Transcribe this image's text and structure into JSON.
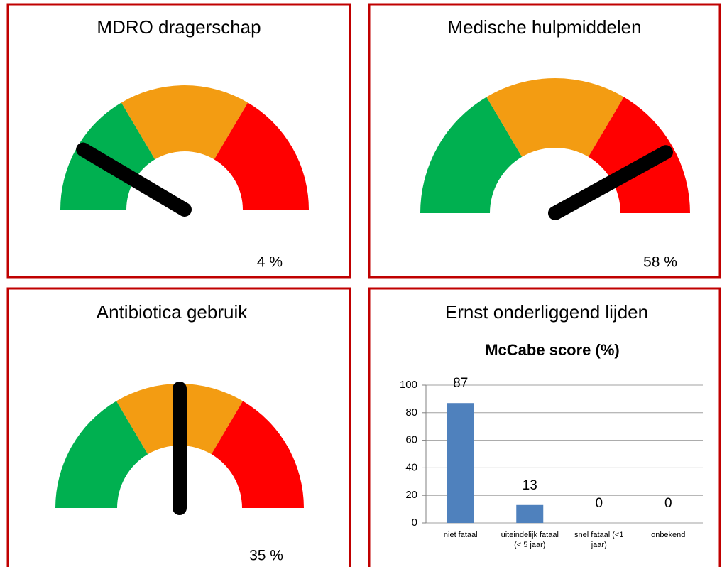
{
  "chart_data": [
    {
      "type": "gauge",
      "title": "MDRO dragerschap",
      "caption": "4 %",
      "needle": 17,
      "ylim": [
        0,
        100
      ],
      "bands": [
        {
          "color": "#00b050",
          "from": 0,
          "to": 33
        },
        {
          "color": "#f39c12",
          "from": 33,
          "to": 67
        },
        {
          "color": "#ff0000",
          "from": 67,
          "to": 100
        }
      ]
    },
    {
      "type": "gauge",
      "title": "Medische hulpmiddelen",
      "caption": "58 %",
      "needle": 84,
      "ylim": [
        0,
        100
      ],
      "bands": [
        {
          "color": "#00b050",
          "from": 0,
          "to": 33
        },
        {
          "color": "#f39c12",
          "from": 33,
          "to": 67
        },
        {
          "color": "#ff0000",
          "from": 67,
          "to": 100
        }
      ]
    },
    {
      "type": "gauge",
      "title": "Antibiotica gebruik",
      "caption": "35 %",
      "needle": 50,
      "ylim": [
        0,
        100
      ],
      "bands": [
        {
          "color": "#00b050",
          "from": 0,
          "to": 33
        },
        {
          "color": "#f39c12",
          "from": 33,
          "to": 67
        },
        {
          "color": "#ff0000",
          "from": 67,
          "to": 100
        }
      ]
    },
    {
      "type": "bar",
      "title": "Ernst onderliggend lijden",
      "subtitle": "McCabe score (%)",
      "categories": [
        "niet fataal",
        "uiteindelijk fataal (< 5 jaar)",
        "snel fataal (<1 jaar)",
        "onbekend"
      ],
      "values": [
        87,
        13,
        0,
        0
      ],
      "color": "#4f81bd",
      "ylim": [
        0,
        100
      ],
      "yticks": [
        0,
        20,
        40,
        60,
        80,
        100
      ],
      "grid": true
    }
  ]
}
